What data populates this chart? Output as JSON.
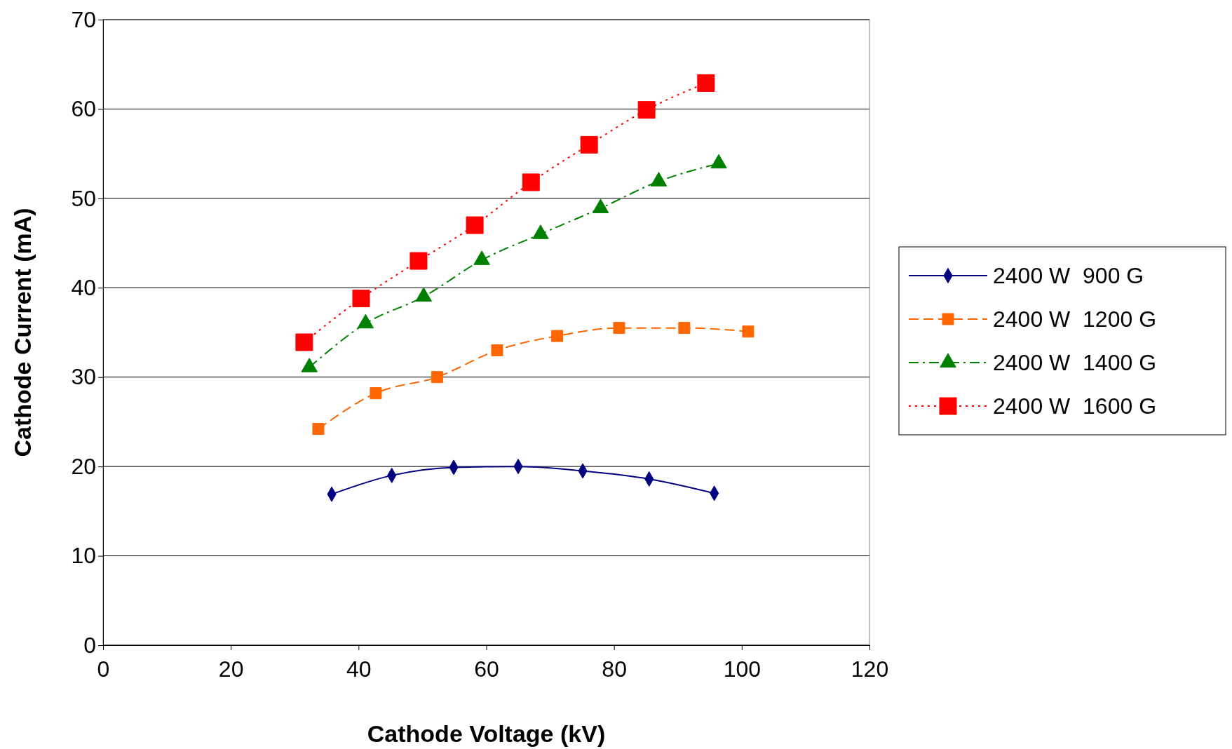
{
  "chart_data": {
    "type": "line",
    "xlabel": "Cathode Voltage (kV)",
    "ylabel": "Cathode Current (mA)",
    "xlim": [
      0,
      120
    ],
    "xticks": [
      0,
      20,
      40,
      60,
      80,
      100,
      120
    ],
    "ylim": [
      0,
      70
    ],
    "yticks": [
      0,
      10,
      20,
      30,
      40,
      50,
      60,
      70
    ],
    "grid": "y",
    "legend": "right",
    "series": [
      {
        "name": "2400 W  900 G",
        "color": "#000080",
        "marker": "diamond",
        "line_style": "solid",
        "x": [
          35.8,
          45.2,
          54.9,
          65,
          75.1,
          85.5,
          95.7
        ],
        "values": [
          16.9,
          19,
          19.9,
          20,
          19.5,
          18.6,
          17
        ]
      },
      {
        "name": "2400 W  1200 G",
        "color": "#ff6600",
        "marker": "square",
        "line_style": "dashed",
        "x": [
          33.7,
          42.7,
          52.3,
          61.7,
          71.1,
          80.8,
          91,
          101
        ],
        "values": [
          24.2,
          28.2,
          30,
          33,
          34.6,
          35.5,
          35.5,
          35.1
        ]
      },
      {
        "name": "2400 W  1400 G",
        "color": "#008000",
        "marker": "triangle",
        "line_style": "dashdot",
        "x": [
          32.3,
          41.1,
          50.2,
          59.3,
          68.5,
          77.9,
          87,
          96.4
        ],
        "values": [
          31.1,
          36,
          39,
          43.1,
          46,
          48.9,
          51.9,
          53.9
        ]
      },
      {
        "name": "2400 W  1600 G",
        "color": "#ff0000",
        "marker": "square",
        "line_style": "dotted",
        "x": [
          31.5,
          40.4,
          49.4,
          58.2,
          67,
          76.1,
          85.1,
          94.4
        ],
        "values": [
          33.9,
          38.8,
          43,
          47,
          51.8,
          56,
          59.9,
          62.9
        ]
      }
    ]
  }
}
